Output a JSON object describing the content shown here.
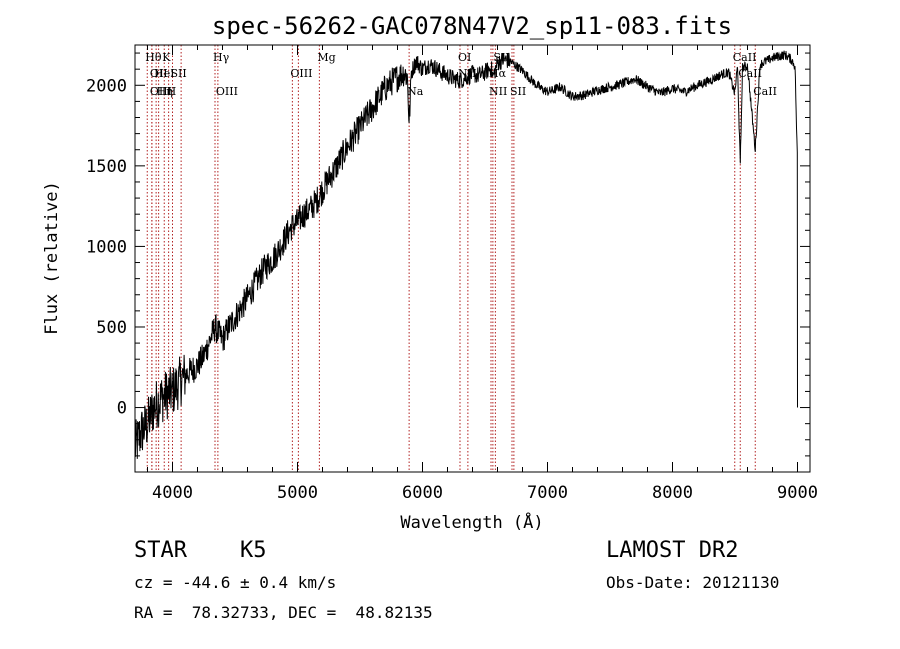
{
  "chart_data": {
    "type": "line",
    "title": "spec-56262-GAC078N47V2_sp11-083.fits",
    "xlabel": "Wavelength (Å)",
    "ylabel": "Flux (relative)",
    "xlim": [
      3700,
      9100
    ],
    "ylim": [
      -400,
      2250
    ],
    "xticks": [
      4000,
      5000,
      6000,
      7000,
      8000,
      9000
    ],
    "yticks": [
      0,
      500,
      1000,
      1500,
      2000
    ],
    "line_color": "#000000",
    "marker_color": "#b22222",
    "spectrum": {
      "x": [
        3700,
        3750,
        3800,
        3850,
        3900,
        3950,
        4000,
        4050,
        4100,
        4150,
        4200,
        4250,
        4300,
        4340,
        4360,
        4400,
        4450,
        4500,
        4550,
        4600,
        4650,
        4700,
        4750,
        4800,
        4850,
        4900,
        4950,
        5000,
        5050,
        5100,
        5150,
        5200,
        5250,
        5300,
        5350,
        5400,
        5450,
        5500,
        5550,
        5600,
        5650,
        5700,
        5750,
        5800,
        5850,
        5880,
        5893,
        5910,
        5950,
        6000,
        6050,
        6100,
        6150,
        6200,
        6250,
        6300,
        6350,
        6400,
        6450,
        6500,
        6550,
        6563,
        6600,
        6650,
        6700,
        6750,
        6800,
        6850,
        6900,
        6950,
        7000,
        7050,
        7100,
        7150,
        7200,
        7300,
        7400,
        7500,
        7600,
        7700,
        7800,
        7900,
        8000,
        8100,
        8200,
        8300,
        8400,
        8450,
        8498,
        8520,
        8542,
        8560,
        8600,
        8662,
        8700,
        8750,
        8800,
        8850,
        8900,
        8950,
        8980,
        9000
      ],
      "y": [
        -250,
        -150,
        -100,
        0,
        50,
        80,
        100,
        150,
        200,
        230,
        260,
        320,
        420,
        500,
        470,
        420,
        500,
        560,
        620,
        680,
        750,
        820,
        880,
        920,
        980,
        1050,
        1120,
        1150,
        1200,
        1230,
        1280,
        1350,
        1420,
        1480,
        1550,
        1620,
        1680,
        1740,
        1800,
        1860,
        1920,
        1980,
        2020,
        2050,
        2080,
        2050,
        1750,
        2080,
        2150,
        2100,
        2130,
        2110,
        2080,
        2060,
        2040,
        2030,
        2050,
        2070,
        2060,
        2080,
        2110,
        2050,
        2140,
        2160,
        2150,
        2120,
        2090,
        2050,
        2010,
        1980,
        1960,
        1970,
        1990,
        1960,
        1930,
        1940,
        1970,
        1990,
        2010,
        2040,
        1990,
        1950,
        1980,
        1960,
        2000,
        2030,
        2070,
        2080,
        1950,
        2120,
        1500,
        2110,
        2120,
        1600,
        2130,
        2150,
        2170,
        2180,
        2190,
        2160,
        2120,
        1500
      ]
    },
    "lines": [
      {
        "w": 3798,
        "label": "Hθ",
        "row": 1
      },
      {
        "w": 3835,
        "label": "OII",
        "row": 2
      },
      {
        "w": 3835,
        "label": "OIII",
        "row": 3
      },
      {
        "w": 3869,
        "label": "HeI",
        "row": 2
      },
      {
        "w": 3889,
        "label": "Hη",
        "row": 3
      },
      {
        "w": 3934,
        "label": "K",
        "row": 1
      },
      {
        "w": 3969,
        "label": "H",
        "row": 3
      },
      {
        "w": 4000,
        "label": "SII",
        "row": 2
      },
      {
        "w": 4069,
        "label": "",
        "row": 0
      },
      {
        "w": 4340,
        "label": "Hγ",
        "row": 1
      },
      {
        "w": 4363,
        "label": "OIII",
        "row": 3
      },
      {
        "w": 4959,
        "label": "OIII",
        "row": 2
      },
      {
        "w": 5007,
        "label": "",
        "row": 0
      },
      {
        "w": 5175,
        "label": "Mg",
        "row": 1
      },
      {
        "w": 5893,
        "label": "Na",
        "row": 3
      },
      {
        "w": 6300,
        "label": "OI",
        "row": 1
      },
      {
        "w": 6300,
        "label": "NII",
        "row": 2
      },
      {
        "w": 6363,
        "label": "",
        "row": 0
      },
      {
        "w": 6548,
        "label": "Hα",
        "row": 2
      },
      {
        "w": 6548,
        "label": "NII",
        "row": 3
      },
      {
        "w": 6563,
        "label": "",
        "row": 0
      },
      {
        "w": 6583,
        "label": "SII",
        "row": 1
      },
      {
        "w": 6716,
        "label": "SII",
        "row": 3
      },
      {
        "w": 6731,
        "label": "",
        "row": 0
      },
      {
        "w": 8498,
        "label": "CaII",
        "row": 1
      },
      {
        "w": 8542,
        "label": "CaII",
        "row": 2
      },
      {
        "w": 8662,
        "label": "CaII",
        "row": 3
      }
    ]
  },
  "footer": {
    "class_label": "STAR",
    "subclass": "K5",
    "survey": "LAMOST DR2",
    "redshift": "cz = -44.6 ± 0.4 km/s",
    "obs_date": "Obs-Date: 20121130",
    "coords": "RA =  78.32733, DEC =  48.82135"
  }
}
